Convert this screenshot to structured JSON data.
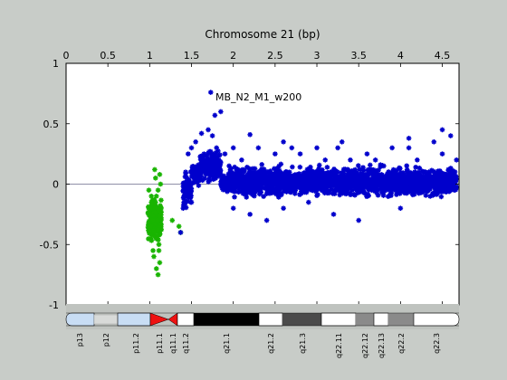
{
  "chart_data": {
    "type": "scatter",
    "title": "Chromosome 21 (bp)",
    "annotation": "MB_N2_M1_w200",
    "xlim": [
      0,
      4.7
    ],
    "ylim": [
      -1,
      1
    ],
    "x_ticks": [
      0,
      0.5,
      1,
      1.5,
      2,
      2.5,
      3,
      3.5,
      4,
      4.5
    ],
    "x_tick_labels": [
      "0",
      "0.5",
      "1",
      "1.5",
      "2",
      "2.5",
      "3",
      "3.5",
      "4",
      "4.5"
    ],
    "y_ticks": [
      1,
      0.5,
      0,
      -0.5,
      -1
    ],
    "y_tick_labels": [
      "1",
      "0.5",
      "0",
      "-0.5",
      "-1"
    ],
    "x_axis_position": "top",
    "reference_line_y": 0,
    "series": [
      {
        "color": "#19b400",
        "x": [
          0.99,
          1.0,
          1.01,
          1.02,
          1.03,
          1.04,
          1.05,
          1.06,
          1.07,
          1.08,
          1.09,
          1.1,
          1.11,
          1.12,
          1.13,
          1.03,
          1.05,
          1.08,
          1.1,
          1.12,
          1.27,
          1.35,
          1.37,
          1.02,
          1.06,
          1.09,
          1.11,
          1.04,
          1.07,
          1.01
        ],
        "y": [
          -0.05,
          -0.25,
          -0.45,
          -0.15,
          -0.35,
          -0.55,
          -0.6,
          0.12,
          0.05,
          -0.1,
          -0.3,
          -0.75,
          -0.5,
          -0.65,
          0.0,
          -0.2,
          -0.4,
          -0.7,
          -0.05,
          0.08,
          -0.3,
          -0.35,
          -0.4,
          -0.1,
          -0.2,
          -0.45,
          -0.55,
          -0.3,
          -0.15,
          -0.35
        ]
      },
      {
        "color": "#0000cc",
        "x": [
          1.37,
          1.4,
          1.43,
          1.46,
          1.5,
          1.55,
          1.6,
          1.65,
          1.7,
          1.73,
          1.75,
          1.8,
          1.85,
          1.9,
          1.95,
          2.0,
          2.1,
          2.2,
          2.3,
          2.4,
          2.5,
          2.6,
          2.7,
          2.8,
          2.9,
          3.0,
          3.1,
          3.2,
          3.3,
          3.4,
          3.5,
          3.6,
          3.7,
          3.8,
          3.9,
          4.0,
          4.1,
          4.2,
          4.3,
          4.4,
          4.5,
          4.6,
          4.67,
          1.78,
          2.0,
          2.2,
          1.62,
          1.5,
          2.6,
          3.25,
          4.1,
          4.5
        ],
        "y": [
          -0.4,
          -0.2,
          0.1,
          0.25,
          0.3,
          0.35,
          0.1,
          0.25,
          0.45,
          0.76,
          0.4,
          0.3,
          0.6,
          0.25,
          0.15,
          -0.2,
          0.2,
          -0.25,
          0.3,
          -0.3,
          0.25,
          -0.2,
          0.3,
          0.25,
          -0.15,
          0.3,
          0.2,
          -0.25,
          0.35,
          0.2,
          -0.3,
          0.25,
          0.2,
          0.15,
          0.3,
          -0.2,
          0.38,
          0.2,
          0.1,
          0.35,
          0.25,
          0.4,
          0.2,
          0.57,
          0.3,
          0.41,
          0.42,
          -0.15,
          0.35,
          0.3,
          0.3,
          0.45
        ]
      }
    ],
    "bands": [
      "p13",
      "p12",
      "p11.2",
      "p11.1",
      "q11.1",
      "q11.2",
      "q21.1",
      "q21.2",
      "q21.3",
      "q22.11",
      "q22.12",
      "q22.13",
      "q22.2",
      "q22.3"
    ]
  }
}
